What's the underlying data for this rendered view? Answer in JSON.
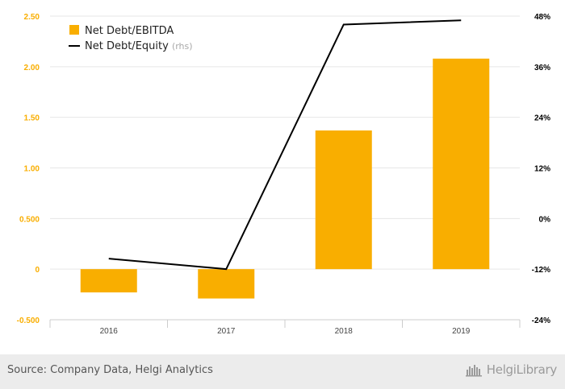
{
  "chart_data": {
    "type": "bar",
    "categories": [
      "2016",
      "2017",
      "2018",
      "2019"
    ],
    "series": [
      {
        "name": "Net Debt/EBITDA",
        "type": "bar",
        "axis": "left",
        "color": "#f9ae00",
        "values": [
          -0.23,
          -0.29,
          1.37,
          2.08
        ]
      },
      {
        "name": "Net Debt/Equity",
        "name_suffix": "(rhs)",
        "type": "line",
        "axis": "right",
        "color": "#000000",
        "values": [
          -9.5,
          -12.0,
          46.0,
          47.0
        ]
      }
    ],
    "y_left": {
      "min": -0.5,
      "max": 2.5,
      "ticks": [
        "2.50",
        "2.00",
        "1.50",
        "1.00",
        "0.500",
        "0",
        "-0.500"
      ],
      "tick_values": [
        2.5,
        2.0,
        1.5,
        1.0,
        0.5,
        0,
        -0.5
      ],
      "color": "#f9ae00"
    },
    "y_right": {
      "min": -24,
      "max": 48,
      "ticks": [
        "48%",
        "36%",
        "24%",
        "12%",
        "0%",
        "-12%",
        "-24%"
      ],
      "tick_values": [
        48,
        36,
        24,
        12,
        0,
        -12,
        -24
      ],
      "color": "#000000"
    },
    "grid": true,
    "legend_position": "top-left"
  },
  "footer": {
    "source": "Source: Company Data, Helgi Analytics",
    "brand": "HelgiLibrary"
  }
}
